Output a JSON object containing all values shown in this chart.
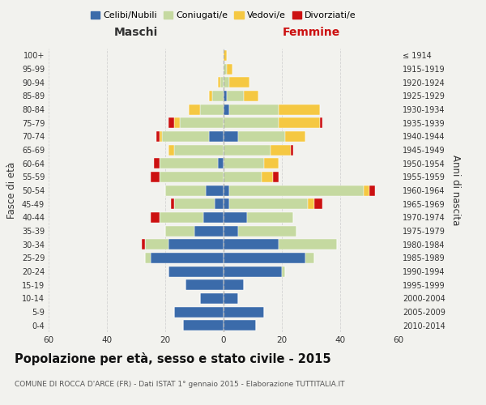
{
  "age_groups": [
    "0-4",
    "5-9",
    "10-14",
    "15-19",
    "20-24",
    "25-29",
    "30-34",
    "35-39",
    "40-44",
    "45-49",
    "50-54",
    "55-59",
    "60-64",
    "65-69",
    "70-74",
    "75-79",
    "80-84",
    "85-89",
    "90-94",
    "95-99",
    "100+"
  ],
  "birth_years": [
    "2010-2014",
    "2005-2009",
    "2000-2004",
    "1995-1999",
    "1990-1994",
    "1985-1989",
    "1980-1984",
    "1975-1979",
    "1970-1974",
    "1965-1969",
    "1960-1964",
    "1955-1959",
    "1950-1954",
    "1945-1949",
    "1940-1944",
    "1935-1939",
    "1930-1934",
    "1925-1929",
    "1920-1924",
    "1915-1919",
    "≤ 1914"
  ],
  "maschi": {
    "celibi": [
      14,
      17,
      8,
      13,
      19,
      25,
      19,
      10,
      7,
      3,
      6,
      0,
      2,
      0,
      5,
      0,
      0,
      0,
      0,
      0,
      0
    ],
    "coniugati": [
      0,
      0,
      0,
      0,
      0,
      2,
      8,
      10,
      15,
      14,
      14,
      22,
      20,
      17,
      16,
      15,
      8,
      4,
      1,
      0,
      0
    ],
    "vedovi": [
      0,
      0,
      0,
      0,
      0,
      0,
      0,
      0,
      0,
      0,
      0,
      0,
      0,
      2,
      1,
      2,
      4,
      1,
      1,
      0,
      0
    ],
    "divorziati": [
      0,
      0,
      0,
      0,
      0,
      0,
      1,
      0,
      3,
      1,
      0,
      3,
      2,
      0,
      1,
      2,
      0,
      0,
      0,
      0,
      0
    ]
  },
  "femmine": {
    "nubili": [
      11,
      14,
      5,
      7,
      20,
      28,
      19,
      5,
      8,
      2,
      2,
      0,
      0,
      0,
      5,
      0,
      2,
      1,
      0,
      0,
      0
    ],
    "coniugate": [
      0,
      0,
      0,
      0,
      1,
      3,
      20,
      20,
      16,
      27,
      46,
      13,
      14,
      16,
      16,
      19,
      17,
      6,
      2,
      1,
      0
    ],
    "vedove": [
      0,
      0,
      0,
      0,
      0,
      0,
      0,
      0,
      0,
      2,
      2,
      4,
      5,
      7,
      7,
      14,
      14,
      5,
      7,
      2,
      1
    ],
    "divorziate": [
      0,
      0,
      0,
      0,
      0,
      0,
      0,
      0,
      0,
      3,
      2,
      2,
      0,
      1,
      0,
      1,
      0,
      0,
      0,
      0,
      0
    ]
  },
  "colors": {
    "celibi": "#3b6baa",
    "coniugati": "#c5d9a0",
    "vedovi": "#f5c842",
    "divorziati": "#cc1111"
  },
  "title": "Popolazione per età, sesso e stato civile - 2015",
  "subtitle": "COMUNE DI ROCCA D'ARCE (FR) - Dati ISTAT 1° gennaio 2015 - Elaborazione TUTTITALIA.IT",
  "xlabel_maschi": "Maschi",
  "xlabel_femmine": "Femmine",
  "ylabel": "Fasce di età",
  "ylabel_right": "Anni di nascita",
  "xlim": 60,
  "bg_color": "#f2f2ee",
  "grid_color": "#cccccc"
}
